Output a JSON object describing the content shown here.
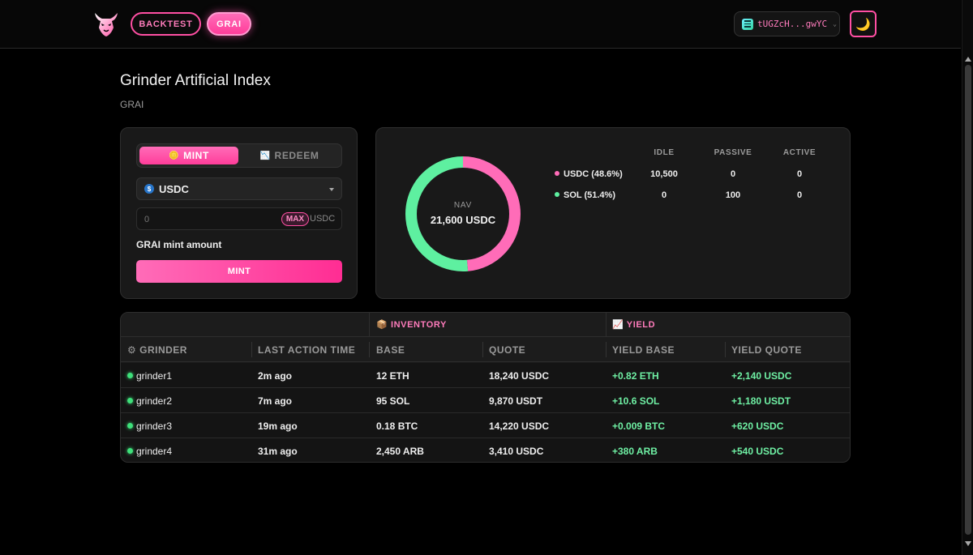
{
  "header": {
    "nav": [
      {
        "label": "BACKTEST"
      },
      {
        "label": "GRAI"
      }
    ],
    "wallet": {
      "address": "tUGZcH...gwYC"
    },
    "theme_icon": "moon-icon"
  },
  "page": {
    "title": "Grinder Artificial Index",
    "subtitle": "GRAI"
  },
  "mint_panel": {
    "tabs": [
      {
        "label": "MINT",
        "icon": "🪙"
      },
      {
        "label": "REDEEM",
        "icon": "📉"
      }
    ],
    "token_select": {
      "value": "USDC"
    },
    "amount_input": {
      "placeholder": "0",
      "value": ""
    },
    "max_label": "MAX",
    "unit_label": "USDC",
    "mint_amount_label": "GRAI mint amount",
    "mint_button": "MINT"
  },
  "nav_panel": {
    "label": "NAV",
    "value": "21,600 USDC",
    "columns": [
      "IDLE",
      "PASSIVE",
      "ACTIVE"
    ],
    "rows": [
      {
        "asset": "USDC (48.6%)",
        "idle": "10,500",
        "passive": "0",
        "active": "0",
        "share": 48.6,
        "color": "#ff6cb8"
      },
      {
        "asset": "SOL (51.4%)",
        "idle": "0",
        "passive": "100",
        "active": "0",
        "share": 51.4,
        "color": "#5ef0a0"
      }
    ]
  },
  "table": {
    "groups": [
      {
        "label": "INVENTORY",
        "icon": "📦"
      },
      {
        "label": "YIELD",
        "icon": "📈"
      }
    ],
    "columns": [
      "GRINDER",
      "LAST ACTION TIME",
      "BASE",
      "QUOTE",
      "YIELD BASE",
      "YIELD QUOTE"
    ],
    "grinder_icon": "⚙",
    "rows": [
      {
        "grinder": "grinder1",
        "last_action": "2m ago",
        "base": "12 ETH",
        "quote": "18,240 USDC",
        "yield_base": "+0.82 ETH",
        "yield_quote": "+2,140 USDC"
      },
      {
        "grinder": "grinder2",
        "last_action": "7m ago",
        "base": "95 SOL",
        "quote": "9,870 USDT",
        "yield_base": "+10.6 SOL",
        "yield_quote": "+1,180 USDT"
      },
      {
        "grinder": "grinder3",
        "last_action": "19m ago",
        "base": "0.18 BTC",
        "quote": "14,220 USDC",
        "yield_base": "+0.009 BTC",
        "yield_quote": "+620 USDC"
      },
      {
        "grinder": "grinder4",
        "last_action": "31m ago",
        "base": "2,450 ARB",
        "quote": "3,410 USDC",
        "yield_base": "+380 ARB",
        "yield_quote": "+540 USDC"
      }
    ]
  }
}
